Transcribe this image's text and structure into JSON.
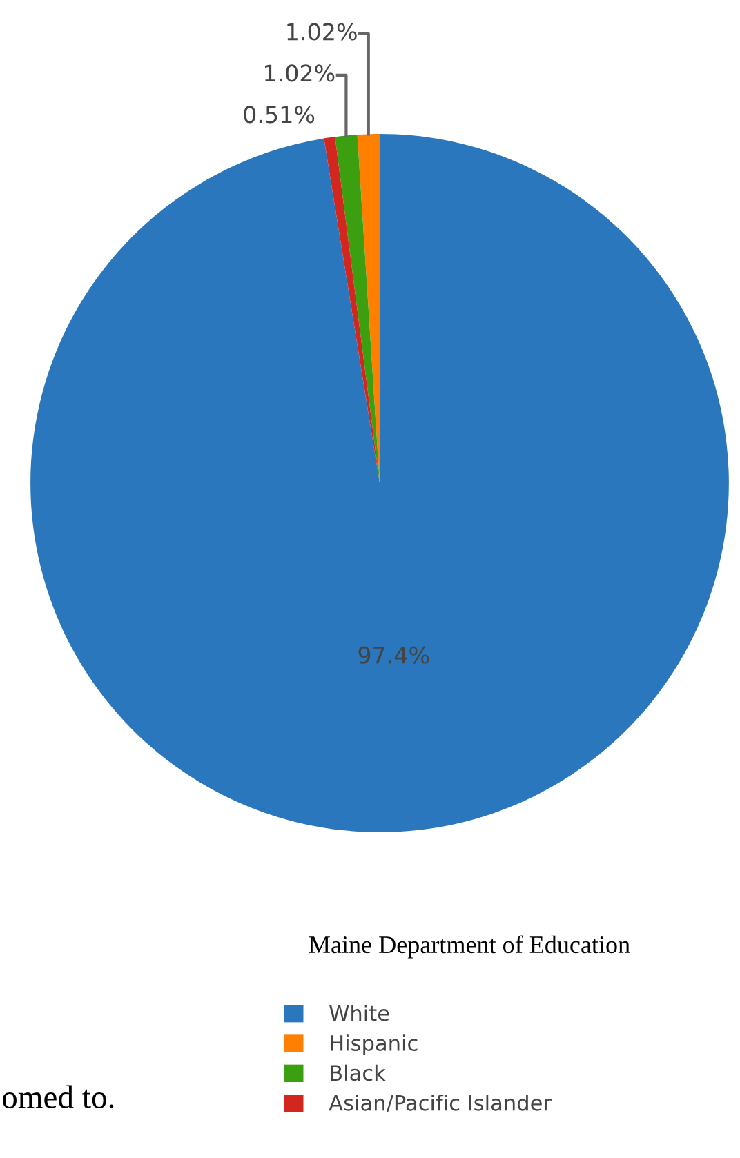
{
  "chart_data": {
    "type": "pie",
    "categories": [
      "White",
      "Hispanic",
      "Black",
      "Asian/Pacific Islander"
    ],
    "values": [
      97.4,
      1.02,
      1.02,
      0.51
    ],
    "colors": [
      "#2a77bd",
      "#ff8000",
      "#3c9f0f",
      "#d1271f"
    ],
    "value_labels": [
      "97.4%",
      "1.02%",
      "1.02%",
      "0.51%"
    ],
    "legend": "bottom",
    "annotations": [
      "Maine Department of Education",
      "omed to."
    ]
  }
}
